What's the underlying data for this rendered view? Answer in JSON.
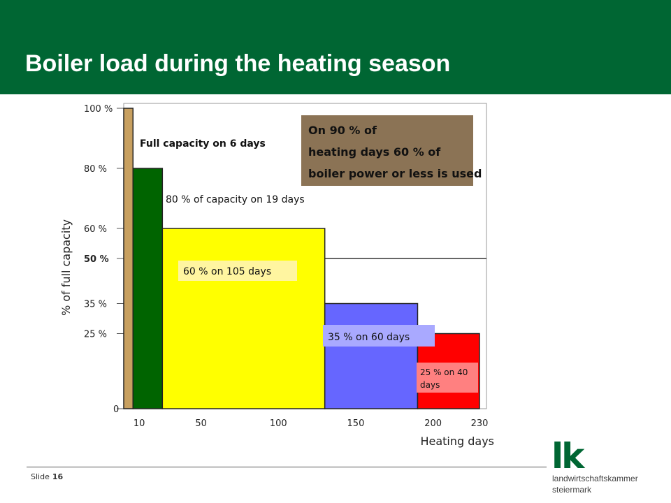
{
  "slide": {
    "title": "Boiler load during the heating season",
    "footer_label": "Slide",
    "slide_number": "16"
  },
  "logo": {
    "mark": "lk",
    "line1": "landwirtschaftskammer",
    "line2": "steiermark"
  },
  "colors": {
    "header": "#006633",
    "brand_green": "#006633",
    "annotation_box": "#8B7355",
    "bar_6_days": "#C8A060",
    "bar_19_days": "#006400",
    "bar_105_days": "#FFFF00",
    "bar_60_days": "#6666FF",
    "bar_40_days": "#FF0000"
  },
  "chart_data": {
    "type": "bar",
    "xlabel": "Heating days",
    "ylabel": "% of full capacity",
    "xlim": [
      0,
      230
    ],
    "ylim": [
      0,
      100
    ],
    "x_ticks": [
      "10",
      "50",
      "100",
      "150",
      "200",
      "230"
    ],
    "x_tick_values": [
      10,
      50,
      100,
      150,
      200,
      230
    ],
    "y_ticks": [
      "0",
      "25 %",
      "35 %",
      "50 %",
      "60 %",
      "80 %",
      "100 %"
    ],
    "y_tick_values": [
      0,
      25,
      35,
      50,
      60,
      80,
      100
    ],
    "reference_line": 50,
    "segments": [
      {
        "days": 6,
        "load_percent": 100,
        "label": "Full capacity on 6 days",
        "color": "#C8A060"
      },
      {
        "days": 19,
        "load_percent": 80,
        "label": "80 % of capacity on 19 days",
        "color": "#006400"
      },
      {
        "days": 105,
        "load_percent": 60,
        "label": "60 % on 105 days",
        "color": "#FFFF00"
      },
      {
        "days": 60,
        "load_percent": 35,
        "label": "35 % on 60 days",
        "color": "#6666FF"
      },
      {
        "days": 40,
        "load_percent": 25,
        "label": "25 % on 40 days",
        "color": "#FF0000"
      }
    ],
    "annotation": "On 90 % of heating days 60 % of boiler power or less is used"
  }
}
